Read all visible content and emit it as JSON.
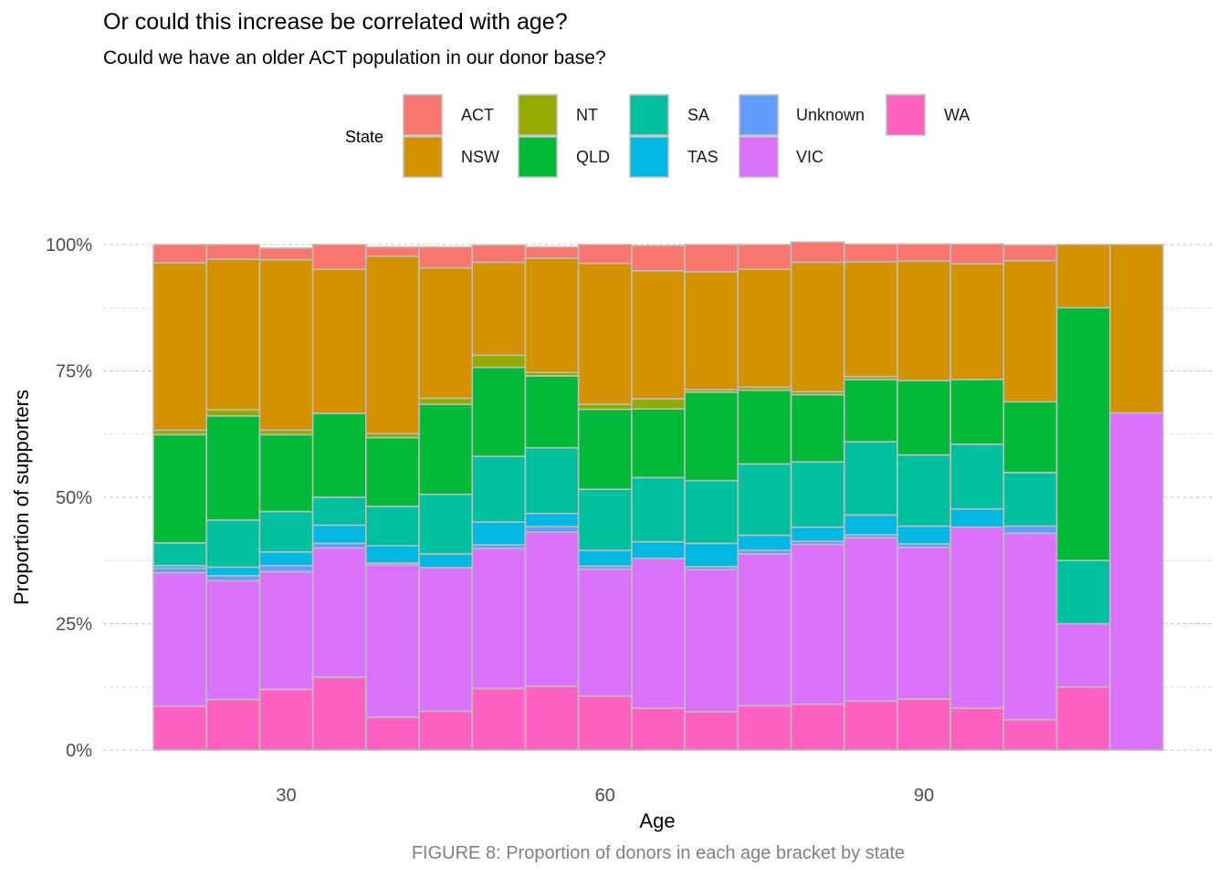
{
  "chart_data": {
    "type": "bar",
    "stacked": "proportional",
    "title": "Or could this increase be correlated with age?",
    "subtitle": "Could we have an older ACT population in our donor base?",
    "caption": "FIGURE 8: Proportion of donors in each age bracket by state",
    "xlabel": "Age",
    "ylabel": "Proportion of supporters",
    "xlim": [
      17.5,
      112.5
    ],
    "x_ticks": [
      30,
      60,
      90
    ],
    "x_tick_labels": [
      "30",
      "60",
      "90"
    ],
    "ylim": [
      0,
      1
    ],
    "y_ticks": [
      0,
      0.25,
      0.5,
      0.75,
      1
    ],
    "y_tick_labels": [
      "0%",
      "25%",
      "50%",
      "75%",
      "100%"
    ],
    "grid": true,
    "legend": {
      "title": "State",
      "position": "top"
    },
    "categories": [
      20,
      25,
      30,
      35,
      40,
      45,
      50,
      55,
      60,
      65,
      70,
      75,
      80,
      85,
      90,
      95,
      100,
      105,
      110
    ],
    "stack_order_bottom_to_top": [
      "WA",
      "VIC",
      "Unknown",
      "TAS",
      "SA",
      "QLD",
      "NT",
      "NSW",
      "ACT"
    ],
    "series": [
      {
        "name": "ACT",
        "color": "#F8766D",
        "values": [
          0.036,
          0.029,
          0.023,
          0.049,
          0.018,
          0.041,
          0.034,
          0.022,
          0.037,
          0.05,
          0.054,
          0.049,
          0.04,
          0.035,
          0.034,
          0.039,
          0.031,
          0.0,
          0.0
        ]
      },
      {
        "name": "NSW",
        "color": "#D39200",
        "values": [
          0.331,
          0.298,
          0.337,
          0.285,
          0.351,
          0.258,
          0.184,
          0.226,
          0.279,
          0.253,
          0.233,
          0.233,
          0.256,
          0.227,
          0.236,
          0.229,
          0.279,
          0.125,
          0.333
        ]
      },
      {
        "name": "NT",
        "color": "#93AA00",
        "values": [
          0.009,
          0.012,
          0.009,
          0.0,
          0.008,
          0.012,
          0.024,
          0.007,
          0.01,
          0.02,
          0.005,
          0.006,
          0.006,
          0.006,
          0.0,
          0.0,
          0.0,
          0.0,
          0.0
        ]
      },
      {
        "name": "QLD",
        "color": "#00BA38",
        "values": [
          0.214,
          0.206,
          0.152,
          0.166,
          0.136,
          0.178,
          0.176,
          0.142,
          0.158,
          0.136,
          0.175,
          0.146,
          0.133,
          0.123,
          0.147,
          0.128,
          0.14,
          0.5,
          0.0
        ]
      },
      {
        "name": "SA",
        "color": "#00C19F",
        "values": [
          0.045,
          0.093,
          0.08,
          0.055,
          0.078,
          0.118,
          0.13,
          0.13,
          0.121,
          0.127,
          0.124,
          0.141,
          0.129,
          0.145,
          0.141,
          0.128,
          0.106,
          0.125,
          0.0
        ]
      },
      {
        "name": "TAS",
        "color": "#00B9E3",
        "values": [
          0.005,
          0.017,
          0.027,
          0.036,
          0.034,
          0.027,
          0.045,
          0.026,
          0.031,
          0.033,
          0.046,
          0.03,
          0.028,
          0.039,
          0.035,
          0.036,
          0.0,
          0.0,
          0.0
        ]
      },
      {
        "name": "Unknown",
        "color": "#619CFF",
        "values": [
          0.009,
          0.01,
          0.012,
          0.009,
          0.004,
          0.0,
          0.007,
          0.011,
          0.006,
          0.0,
          0.006,
          0.007,
          0.006,
          0.006,
          0.007,
          0.0,
          0.014,
          0.0,
          0.0
        ]
      },
      {
        "name": "VIC",
        "color": "#DB72FB",
        "values": [
          0.264,
          0.235,
          0.233,
          0.256,
          0.301,
          0.284,
          0.277,
          0.305,
          0.251,
          0.296,
          0.281,
          0.3,
          0.316,
          0.323,
          0.3,
          0.358,
          0.369,
          0.125,
          0.667
        ]
      },
      {
        "name": "WA",
        "color": "#FF61C3",
        "values": [
          0.087,
          0.1,
          0.12,
          0.144,
          0.065,
          0.077,
          0.122,
          0.126,
          0.107,
          0.083,
          0.076,
          0.088,
          0.091,
          0.097,
          0.101,
          0.083,
          0.06,
          0.125,
          0.0
        ]
      }
    ]
  }
}
